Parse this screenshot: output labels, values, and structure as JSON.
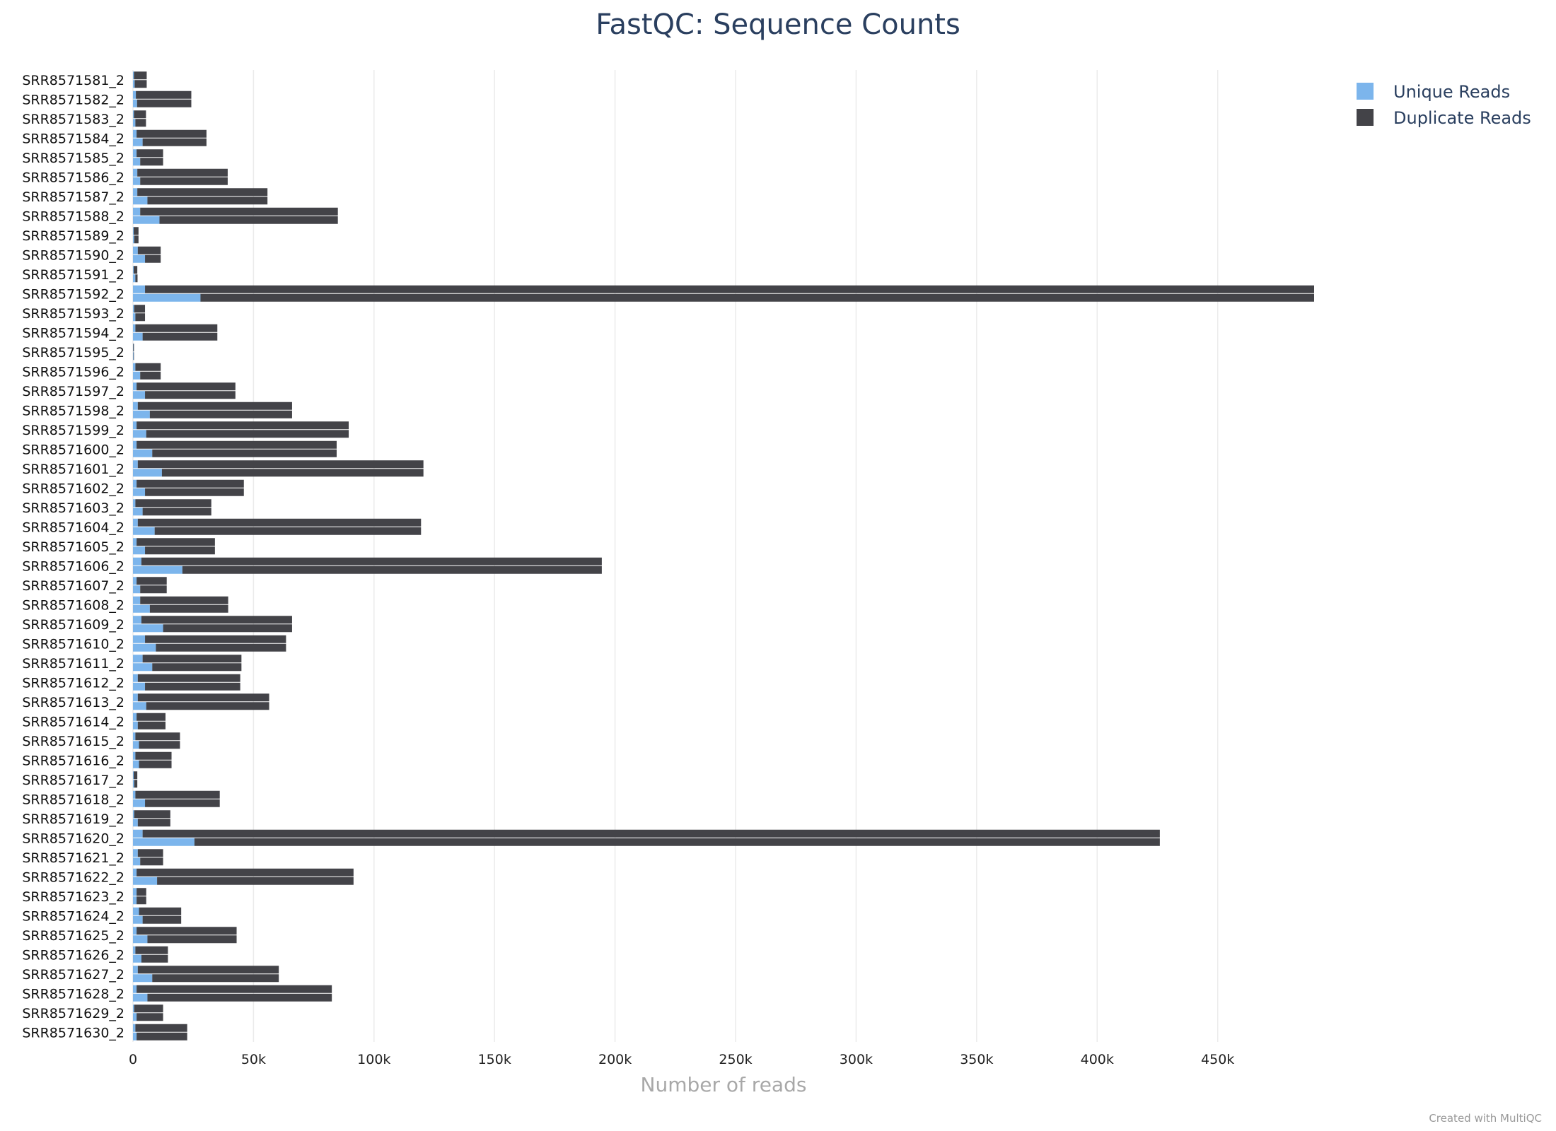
{
  "colors": {
    "unique": "#7cb5ec",
    "duplicate": "#434348",
    "grid": "#ebebeb",
    "title": "#2a3f5f"
  },
  "chart_data": {
    "type": "bar",
    "orientation": "horizontal",
    "stacked": true,
    "title": "FastQC: Sequence Counts",
    "xlabel": "Number of reads",
    "ylabel": "",
    "xlim": [
      0,
      490000
    ],
    "x_ticks": [
      0,
      50000,
      100000,
      150000,
      200000,
      250000,
      300000,
      350000,
      400000,
      450000
    ],
    "x_tick_labels": [
      "0",
      "50k",
      "100k",
      "150k",
      "200k",
      "250k",
      "300k",
      "350k",
      "400k",
      "450k"
    ],
    "grid": true,
    "legend_position": "top-right",
    "legend": [
      "Unique Reads",
      "Duplicate Reads"
    ],
    "categories": [
      "SRR8571581_2",
      "SRR8571582_2",
      "SRR8571583_2",
      "SRR8571584_2",
      "SRR8571585_2",
      "SRR8571586_2",
      "SRR8571587_2",
      "SRR8571588_2",
      "SRR8571589_2",
      "SRR8571590_2",
      "SRR8571591_2",
      "SRR8571592_2",
      "SRR8571593_2",
      "SRR8571594_2",
      "SRR8571595_2",
      "SRR8571596_2",
      "SRR8571597_2",
      "SRR8571598_2",
      "SRR8571599_2",
      "SRR8571600_2",
      "SRR8571601_2",
      "SRR8571602_2",
      "SRR8571603_2",
      "SRR8571604_2",
      "SRR8571605_2",
      "SRR8571606_2",
      "SRR8571607_2",
      "SRR8571608_2",
      "SRR8571609_2",
      "SRR8571610_2",
      "SRR8571611_2",
      "SRR8571612_2",
      "SRR8571613_2",
      "SRR8571614_2",
      "SRR8571615_2",
      "SRR8571616_2",
      "SRR8571617_2",
      "SRR8571618_2",
      "SRR8571619_2",
      "SRR8571620_2",
      "SRR8571621_2",
      "SRR8571622_2",
      "SRR8571623_2",
      "SRR8571624_2",
      "SRR8571625_2",
      "SRR8571626_2",
      "SRR8571627_2",
      "SRR8571628_2",
      "SRR8571629_2",
      "SRR8571630_2"
    ],
    "pairs": [
      [
        [
          400,
          5300
        ],
        [
          700,
          5000
        ]
      ],
      [
        [
          1200,
          23000
        ],
        [
          1700,
          22500
        ]
      ],
      [
        [
          400,
          5000
        ],
        [
          1000,
          4400
        ]
      ],
      [
        [
          1500,
          29000
        ],
        [
          4000,
          26500
        ]
      ],
      [
        [
          1500,
          11000
        ],
        [
          3000,
          9500
        ]
      ],
      [
        [
          1800,
          37500
        ],
        [
          3000,
          36300
        ]
      ],
      [
        [
          1800,
          54000
        ],
        [
          6000,
          49800
        ]
      ],
      [
        [
          3000,
          82000
        ],
        [
          11000,
          74000
        ]
      ],
      [
        [
          300,
          2000
        ],
        [
          500,
          1800
        ]
      ],
      [
        [
          2000,
          9500
        ],
        [
          5000,
          6500
        ]
      ],
      [
        [
          300,
          1500
        ],
        [
          1000,
          900
        ]
      ],
      [
        [
          5000,
          485000
        ],
        [
          28000,
          462000
        ]
      ],
      [
        [
          500,
          4500
        ],
        [
          1000,
          4000
        ]
      ],
      [
        [
          1000,
          34000
        ],
        [
          4000,
          31000
        ]
      ],
      [
        [
          100,
          300
        ],
        [
          200,
          200
        ]
      ],
      [
        [
          1000,
          10500
        ],
        [
          3000,
          8500
        ]
      ],
      [
        [
          1500,
          41000
        ],
        [
          5000,
          37500
        ]
      ],
      [
        [
          2000,
          64000
        ],
        [
          7000,
          59000
        ]
      ],
      [
        [
          1500,
          88000
        ],
        [
          5500,
          84000
        ]
      ],
      [
        [
          1500,
          83000
        ],
        [
          8000,
          76500
        ]
      ],
      [
        [
          2000,
          118500
        ],
        [
          12000,
          108500
        ]
      ],
      [
        [
          1500,
          44500
        ],
        [
          5000,
          41000
        ]
      ],
      [
        [
          1000,
          31500
        ],
        [
          4000,
          28500
        ]
      ],
      [
        [
          2000,
          117500
        ],
        [
          9000,
          110500
        ]
      ],
      [
        [
          1500,
          32500
        ],
        [
          5000,
          29000
        ]
      ],
      [
        [
          3500,
          191000
        ],
        [
          20500,
          174000
        ]
      ],
      [
        [
          1500,
          12500
        ],
        [
          3000,
          11000
        ]
      ],
      [
        [
          3000,
          36500
        ],
        [
          7000,
          32500
        ]
      ],
      [
        [
          3500,
          62500
        ],
        [
          12500,
          53500
        ]
      ],
      [
        [
          5000,
          58500
        ],
        [
          9500,
          54000
        ]
      ],
      [
        [
          4000,
          41000
        ],
        [
          8000,
          37000
        ]
      ],
      [
        [
          2000,
          42500
        ],
        [
          5000,
          39500
        ]
      ],
      [
        [
          2000,
          54500
        ],
        [
          5500,
          51000
        ]
      ],
      [
        [
          1500,
          12000
        ],
        [
          2000,
          11500
        ]
      ],
      [
        [
          1000,
          18500
        ],
        [
          2500,
          17000
        ]
      ],
      [
        [
          1000,
          15000
        ],
        [
          2500,
          13500
        ]
      ],
      [
        [
          300,
          1500
        ],
        [
          500,
          1300
        ]
      ],
      [
        [
          1000,
          35000
        ],
        [
          5000,
          31000
        ]
      ],
      [
        [
          500,
          15000
        ],
        [
          2000,
          13500
        ]
      ],
      [
        [
          4000,
          422000
        ],
        [
          25500,
          400500
        ]
      ],
      [
        [
          2000,
          10500
        ],
        [
          3000,
          9500
        ]
      ],
      [
        [
          1500,
          90000
        ],
        [
          10000,
          81500
        ]
      ],
      [
        [
          1500,
          4000
        ],
        [
          1500,
          4000
        ]
      ],
      [
        [
          2500,
          17500
        ],
        [
          4000,
          16000
        ]
      ],
      [
        [
          1500,
          41500
        ],
        [
          6000,
          37000
        ]
      ],
      [
        [
          1000,
          13500
        ],
        [
          3500,
          11000
        ]
      ],
      [
        [
          2000,
          58500
        ],
        [
          8000,
          52500
        ]
      ],
      [
        [
          1500,
          81000
        ],
        [
          6000,
          76500
        ]
      ],
      [
        [
          500,
          12000
        ],
        [
          1500,
          11000
        ]
      ],
      [
        [
          1000,
          21500
        ],
        [
          1500,
          21000
        ]
      ]
    ]
  },
  "credit": "Created with MultiQC"
}
